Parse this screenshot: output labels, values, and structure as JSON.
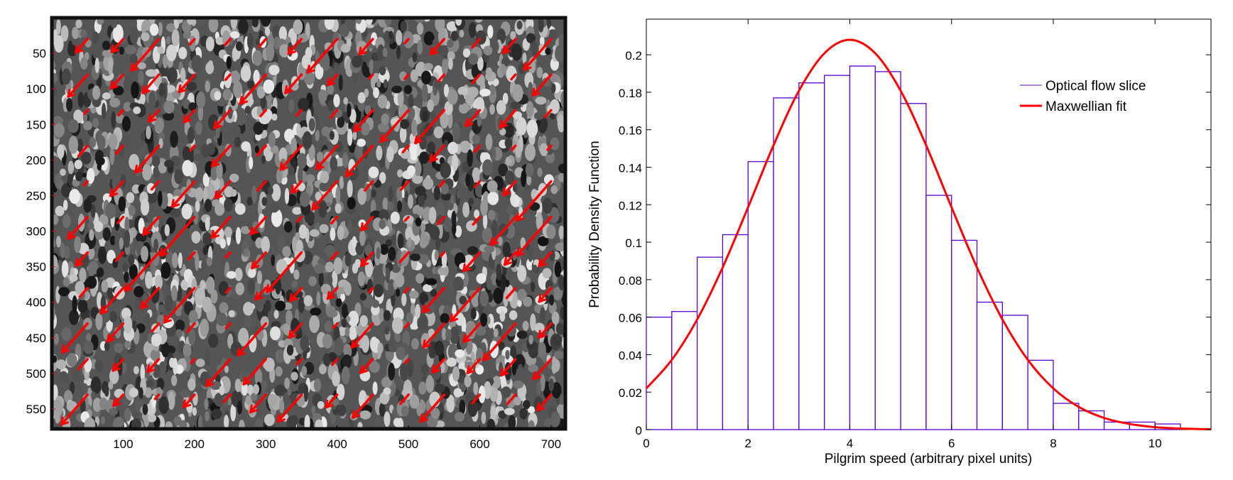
{
  "chart_data": [
    {
      "type": "image-quiver",
      "title": "",
      "xlim": [
        0,
        720
      ],
      "ylim": [
        578,
        0
      ],
      "xticks": [
        "100",
        "200",
        "300",
        "400",
        "500",
        "600",
        "700"
      ],
      "yticks": [
        "50",
        "100",
        "150",
        "200",
        "250",
        "300",
        "350",
        "400",
        "450",
        "500",
        "550"
      ],
      "arrow_color": "#ff0000",
      "arrow_direction": "down-left",
      "grid_spacing": 50
    },
    {
      "type": "bar",
      "xlabel": "Pilgrim speed (arbitrary pixel units)",
      "ylabel": "Probability Density Function",
      "xlim": [
        0,
        11.1
      ],
      "ylim": [
        0,
        0.219
      ],
      "xticks": [
        "0",
        "2",
        "4",
        "6",
        "8",
        "10"
      ],
      "yticks": [
        "0",
        "0.02",
        "0.04",
        "0.06",
        "0.08",
        "0.1",
        "0.12",
        "0.14",
        "0.16",
        "0.18",
        "0.2"
      ],
      "legend": {
        "position": "top-right",
        "entries": [
          "Optical flow slice",
          "Maxwellian fit"
        ]
      },
      "histogram": {
        "name": "Optical flow slice",
        "color": "#5a00d0",
        "bin_width": 0.5,
        "bin_starts": [
          0,
          0.5,
          1,
          1.5,
          2,
          2.5,
          3,
          3.5,
          4,
          4.5,
          5,
          5.5,
          6,
          6.5,
          7,
          7.5,
          8,
          8.5,
          9,
          9.5,
          10
        ],
        "values": [
          0.06,
          0.063,
          0.092,
          0.104,
          0.143,
          0.177,
          0.185,
          0.189,
          0.194,
          0.191,
          0.174,
          0.125,
          0.101,
          0.068,
          0.061,
          0.037,
          0.014,
          0.01,
          0.004,
          0.004,
          0.003
        ]
      },
      "fit": {
        "name": "Maxwellian fit",
        "color": "#ff0000",
        "x": [
          0,
          0.5,
          1,
          1.5,
          2,
          2.5,
          3,
          3.5,
          4,
          4.5,
          5,
          5.5,
          6,
          6.5,
          7,
          7.5,
          8,
          8.5,
          9,
          9.5,
          10,
          10.5,
          11,
          11.1
        ],
        "y": [
          0.022,
          0.0372,
          0.0588,
          0.0865,
          0.1186,
          0.1517,
          0.1808,
          0.2008,
          0.208,
          0.2008,
          0.1808,
          0.1517,
          0.1186,
          0.0865,
          0.0588,
          0.0372,
          0.022,
          0.0121,
          0.0062,
          0.003,
          0.0013,
          0.00055,
          0.0002,
          0.0002
        ]
      }
    }
  ]
}
